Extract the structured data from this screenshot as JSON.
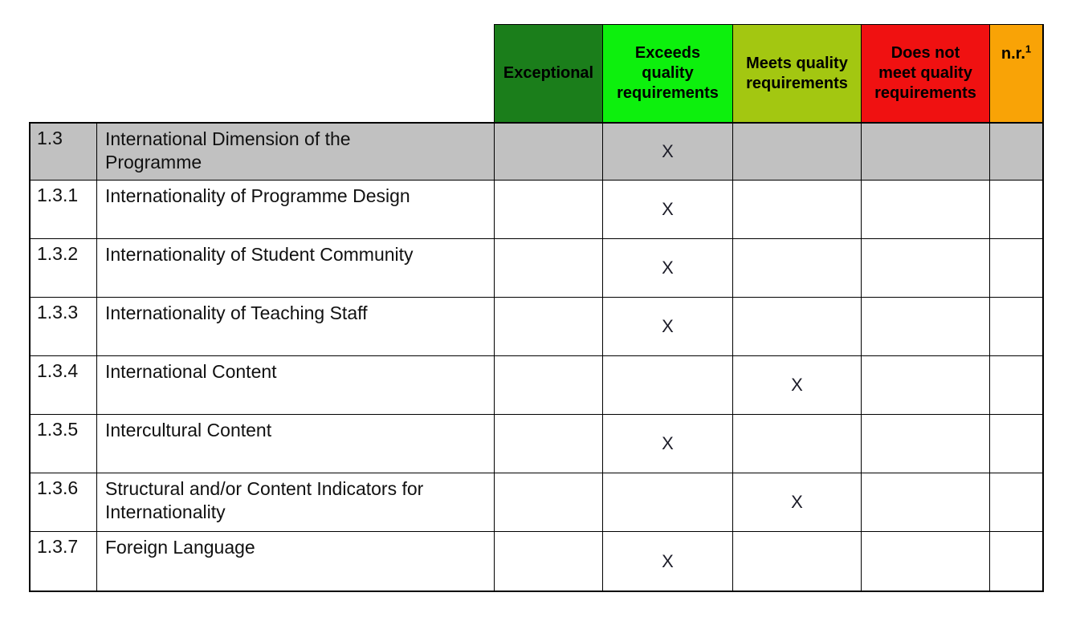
{
  "table": {
    "header": {
      "ratings": [
        {
          "id": "exceptional",
          "label": "Exceptional",
          "color": "#1B7E1B"
        },
        {
          "id": "exceeds",
          "label": "Exceeds\nquality\nrequirements",
          "color": "#0DF00D"
        },
        {
          "id": "meets",
          "label": "Meets quality\nrequirements",
          "color": "#A3C711"
        },
        {
          "id": "does-not-meet",
          "label": "Does not\nmeet quality\nrequirements",
          "color": "#F01111"
        },
        {
          "id": "nr",
          "label": "n.r.",
          "sup": "1",
          "color": "#F9A306"
        }
      ]
    },
    "highlight_color": "#C1C1C1",
    "mark_glyph": "X",
    "rows": [
      {
        "num": "1.3",
        "title": "International Dimension of the\nProgramme",
        "marks": [
          "",
          "X",
          "",
          "",
          ""
        ],
        "highlighted": true
      },
      {
        "num": "1.3.1",
        "title": "Internationality of Programme Design",
        "marks": [
          "",
          "X",
          "",
          "",
          ""
        ],
        "highlighted": false
      },
      {
        "num": "1.3.2",
        "title": "Internationality of Student Community",
        "marks": [
          "",
          "X",
          "",
          "",
          ""
        ],
        "highlighted": false
      },
      {
        "num": "1.3.3",
        "title": "Internationality of Teaching Staff",
        "marks": [
          "",
          "X",
          "",
          "",
          ""
        ],
        "highlighted": false
      },
      {
        "num": "1.3.4",
        "title": "International Content",
        "marks": [
          "",
          "",
          "X",
          "",
          ""
        ],
        "highlighted": false
      },
      {
        "num": "1.3.5",
        "title": "Intercultural Content",
        "marks": [
          "",
          "X",
          "",
          "",
          ""
        ],
        "highlighted": false
      },
      {
        "num": "1.3.6",
        "title": "Structural and/or Content Indicators for\nInternationality",
        "marks": [
          "",
          "",
          "X",
          "",
          ""
        ],
        "highlighted": false
      },
      {
        "num": "1.3.7",
        "title": "Foreign Language",
        "marks": [
          "",
          "X",
          "",
          "",
          ""
        ],
        "highlighted": false
      }
    ]
  }
}
